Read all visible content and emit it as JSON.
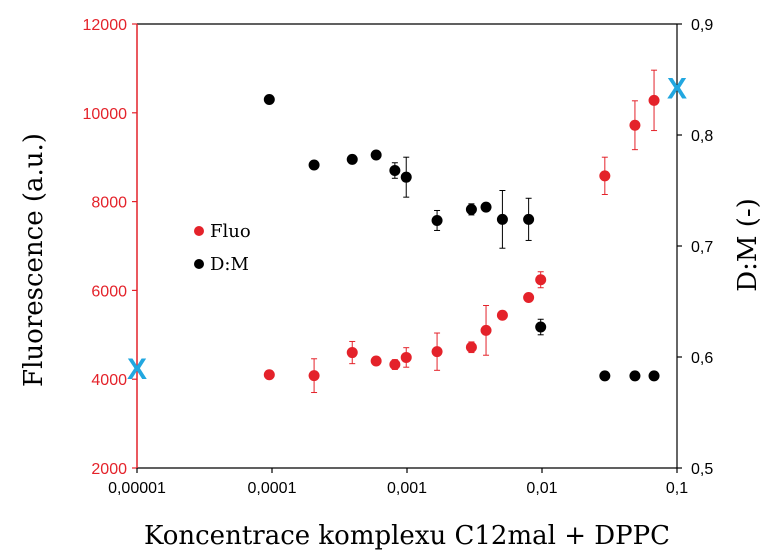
{
  "colors": {
    "fluo": "#e4222a",
    "dm": "#000000",
    "marker": "#22a7e0",
    "axis_left": "#e4222a",
    "axis_right": "#000000"
  },
  "chart_data": {
    "type": "scatter",
    "x_scale": "log",
    "xlim": [
      1e-05,
      0.1
    ],
    "x_ticks": [
      "0,00001",
      "0,0001",
      "0,001",
      "0,01",
      "0,1"
    ],
    "x_tick_values": [
      1e-05,
      0.0001,
      0.001,
      0.01,
      0.1
    ],
    "xlabel": "Koncentrace komplexu C12mal + DPPC",
    "ylabel": "Fluorescence (a.u.)",
    "ylim": [
      2000,
      12000
    ],
    "y_ticks": [
      "2000",
      "4000",
      "6000",
      "8000",
      "10000",
      "12000"
    ],
    "y_tick_values": [
      2000,
      4000,
      6000,
      8000,
      10000,
      12000
    ],
    "y2label": "D:M (-)",
    "y2lim": [
      0.5,
      0.9
    ],
    "y2_ticks": [
      "0,5",
      "0,6",
      "0,7",
      "0,8",
      "0,9"
    ],
    "y2_tick_values": [
      0.5,
      0.6,
      0.7,
      0.8,
      0.9
    ],
    "grid": false,
    "legend": {
      "placement": "center-left"
    },
    "series": [
      {
        "name": "Fluo",
        "axis": "left",
        "points": [
          {
            "x": 9.55e-05,
            "y": 4100,
            "err": 0
          },
          {
            "x": 0.000205,
            "y": 4080,
            "err": 380
          },
          {
            "x": 0.000393,
            "y": 4600,
            "err": 250
          },
          {
            "x": 0.000591,
            "y": 4410,
            "err": 60
          },
          {
            "x": 0.000813,
            "y": 4330,
            "err": 110
          },
          {
            "x": 0.000987,
            "y": 4490,
            "err": 220
          },
          {
            "x": 0.00167,
            "y": 4620,
            "err": 420
          },
          {
            "x": 0.003,
            "y": 4720,
            "err": 120
          },
          {
            "x": 0.00385,
            "y": 5100,
            "err": 560
          },
          {
            "x": 0.00509,
            "y": 5440,
            "err": 0
          },
          {
            "x": 0.00796,
            "y": 5840,
            "err": 0
          },
          {
            "x": 0.00978,
            "y": 6240,
            "err": 180
          },
          {
            "x": 0.0292,
            "y": 8580,
            "err": 420
          },
          {
            "x": 0.0488,
            "y": 9720,
            "err": 550
          },
          {
            "x": 0.0676,
            "y": 10280,
            "err": 680
          }
        ]
      },
      {
        "name": "D:M",
        "axis": "right",
        "points": [
          {
            "x": 9.55e-05,
            "y": 0.832,
            "err": 0
          },
          {
            "x": 0.000205,
            "y": 0.773,
            "err": 0
          },
          {
            "x": 0.000393,
            "y": 0.778,
            "err": 0
          },
          {
            "x": 0.000591,
            "y": 0.782,
            "err": 0
          },
          {
            "x": 0.000813,
            "y": 0.768,
            "err": 0.007
          },
          {
            "x": 0.000987,
            "y": 0.762,
            "err": 0.018
          },
          {
            "x": 0.00167,
            "y": 0.723,
            "err": 0.009
          },
          {
            "x": 0.003,
            "y": 0.733,
            "err": 0.005
          },
          {
            "x": 0.00385,
            "y": 0.735,
            "err": 0
          },
          {
            "x": 0.00509,
            "y": 0.724,
            "err": 0.026
          },
          {
            "x": 0.00796,
            "y": 0.724,
            "err": 0.019
          },
          {
            "x": 0.00978,
            "y": 0.627,
            "err": 0.007
          },
          {
            "x": 0.0292,
            "y": 0.583,
            "err": 0
          },
          {
            "x": 0.0488,
            "y": 0.583,
            "err": 0
          },
          {
            "x": 0.0676,
            "y": 0.583,
            "err": 0
          }
        ]
      }
    ],
    "annotations": [
      {
        "text": "X",
        "x": 1e-05,
        "y": 4250,
        "axis": "left"
      },
      {
        "text": "X",
        "x": 0.1,
        "y": 0.843,
        "axis": "right"
      }
    ]
  }
}
